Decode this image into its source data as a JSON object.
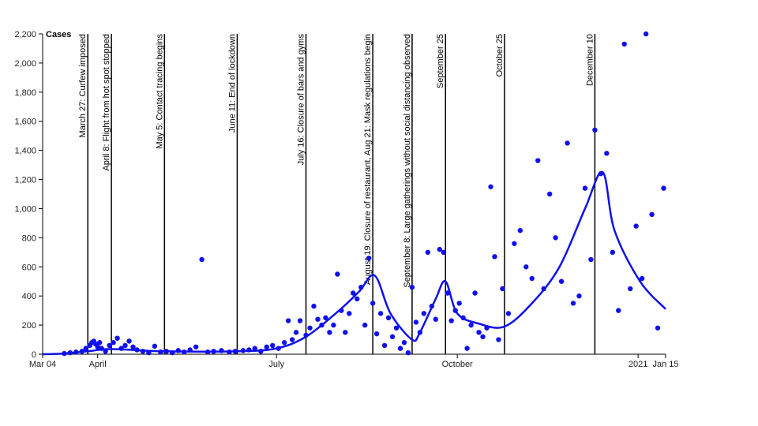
{
  "chart_data": {
    "type": "scatter",
    "title": "",
    "ylabel": "Cases",
    "xlabel": "",
    "x_domain": [
      "2020-03-04",
      "2021-01-15"
    ],
    "ylim": [
      0,
      2200
    ],
    "y_ticks": [
      0,
      200,
      400,
      600,
      800,
      1000,
      1200,
      1400,
      1600,
      1800,
      2000,
      2200
    ],
    "y_tick_labels": [
      "0",
      "200",
      "400",
      "600",
      "800",
      "1,000",
      "1,200",
      "1,400",
      "1,600",
      "1,800",
      "2,000",
      "2,200"
    ],
    "x_ticks": [
      {
        "date": "2020-03-04",
        "label": "Mar 04"
      },
      {
        "date": "2020-04-01",
        "label": "April"
      },
      {
        "date": "2020-07-01",
        "label": "July"
      },
      {
        "date": "2020-10-01",
        "label": "October"
      },
      {
        "date": "2021-01-01",
        "label": "2021"
      },
      {
        "date": "2021-01-15",
        "label": "Jan 15"
      }
    ],
    "grid": false,
    "colors": {
      "points": "#1010ee",
      "trend": "#1010ee",
      "events": "#000000",
      "axis": "#000000"
    },
    "events": [
      {
        "date": "2020-03-27",
        "label": "March 27: Curfew imposed"
      },
      {
        "date": "2020-04-08",
        "label": "April 8: Flight from hot spot stopped"
      },
      {
        "date": "2020-05-05",
        "label": "May 5: Contact tracing begins"
      },
      {
        "date": "2020-06-11",
        "label": "June 11: End of lockdown"
      },
      {
        "date": "2020-07-16",
        "label": "July 16: Closure of bars and gyms"
      },
      {
        "date": "2020-08-19",
        "label": "August 19: Closure of restaurant, Aug 21: Mask regulations begin"
      },
      {
        "date": "2020-09-08",
        "label": "September 8: Large gatherings without social distancing observed"
      },
      {
        "date": "2020-09-25",
        "label": "September 25"
      },
      {
        "date": "2020-10-25",
        "label": "October 25"
      },
      {
        "date": "2020-12-10",
        "label": "December 10"
      }
    ],
    "series": [
      {
        "type": "scatter",
        "points": [
          [
            "2020-03-15",
            5
          ],
          [
            "2020-03-18",
            10
          ],
          [
            "2020-03-21",
            15
          ],
          [
            "2020-03-24",
            20
          ],
          [
            "2020-03-26",
            40
          ],
          [
            "2020-03-28",
            60
          ],
          [
            "2020-03-29",
            80
          ],
          [
            "2020-03-30",
            90
          ],
          [
            "2020-03-31",
            70
          ],
          [
            "2020-04-01",
            50
          ],
          [
            "2020-04-02",
            80
          ],
          [
            "2020-04-03",
            40
          ],
          [
            "2020-04-05",
            20
          ],
          [
            "2020-04-07",
            60
          ],
          [
            "2020-04-09",
            80
          ],
          [
            "2020-04-11",
            110
          ],
          [
            "2020-04-13",
            40
          ],
          [
            "2020-04-15",
            60
          ],
          [
            "2020-04-17",
            90
          ],
          [
            "2020-04-19",
            50
          ],
          [
            "2020-04-21",
            30
          ],
          [
            "2020-04-24",
            20
          ],
          [
            "2020-04-27",
            10
          ],
          [
            "2020-04-30",
            55
          ],
          [
            "2020-05-03",
            15
          ],
          [
            "2020-05-06",
            20
          ],
          [
            "2020-05-09",
            10
          ],
          [
            "2020-05-12",
            25
          ],
          [
            "2020-05-15",
            15
          ],
          [
            "2020-05-18",
            30
          ],
          [
            "2020-05-21",
            50
          ],
          [
            "2020-05-24",
            650
          ],
          [
            "2020-05-27",
            15
          ],
          [
            "2020-05-30",
            20
          ],
          [
            "2020-06-03",
            25
          ],
          [
            "2020-06-07",
            15
          ],
          [
            "2020-06-10",
            20
          ],
          [
            "2020-06-14",
            25
          ],
          [
            "2020-06-17",
            30
          ],
          [
            "2020-06-20",
            40
          ],
          [
            "2020-06-23",
            20
          ],
          [
            "2020-06-26",
            50
          ],
          [
            "2020-06-29",
            60
          ],
          [
            "2020-07-02",
            40
          ],
          [
            "2020-07-05",
            80
          ],
          [
            "2020-07-07",
            230
          ],
          [
            "2020-07-09",
            100
          ],
          [
            "2020-07-11",
            150
          ],
          [
            "2020-07-13",
            230
          ],
          [
            "2020-07-16",
            130
          ],
          [
            "2020-07-18",
            180
          ],
          [
            "2020-07-20",
            330
          ],
          [
            "2020-07-22",
            240
          ],
          [
            "2020-07-24",
            200
          ],
          [
            "2020-07-26",
            250
          ],
          [
            "2020-07-28",
            150
          ],
          [
            "2020-07-30",
            200
          ],
          [
            "2020-08-01",
            550
          ],
          [
            "2020-08-03",
            300
          ],
          [
            "2020-08-05",
            150
          ],
          [
            "2020-08-07",
            280
          ],
          [
            "2020-08-09",
            420
          ],
          [
            "2020-08-11",
            380
          ],
          [
            "2020-08-13",
            460
          ],
          [
            "2020-08-15",
            200
          ],
          [
            "2020-08-17",
            660
          ],
          [
            "2020-08-19",
            350
          ],
          [
            "2020-08-21",
            140
          ],
          [
            "2020-08-23",
            280
          ],
          [
            "2020-08-25",
            60
          ],
          [
            "2020-08-27",
            250
          ],
          [
            "2020-08-29",
            120
          ],
          [
            "2020-08-31",
            180
          ],
          [
            "2020-09-02",
            40
          ],
          [
            "2020-09-04",
            80
          ],
          [
            "2020-09-06",
            10
          ],
          [
            "2020-09-08",
            460
          ],
          [
            "2020-09-10",
            220
          ],
          [
            "2020-09-12",
            150
          ],
          [
            "2020-09-14",
            280
          ],
          [
            "2020-09-16",
            700
          ],
          [
            "2020-09-18",
            330
          ],
          [
            "2020-09-20",
            240
          ],
          [
            "2020-09-22",
            720
          ],
          [
            "2020-09-24",
            700
          ],
          [
            "2020-09-26",
            420
          ],
          [
            "2020-09-28",
            230
          ],
          [
            "2020-09-30",
            300
          ],
          [
            "2020-10-02",
            350
          ],
          [
            "2020-10-04",
            250
          ],
          [
            "2020-10-06",
            40
          ],
          [
            "2020-10-08",
            200
          ],
          [
            "2020-10-10",
            420
          ],
          [
            "2020-10-12",
            150
          ],
          [
            "2020-10-14",
            120
          ],
          [
            "2020-10-16",
            180
          ],
          [
            "2020-10-18",
            1150
          ],
          [
            "2020-10-20",
            670
          ],
          [
            "2020-10-22",
            100
          ],
          [
            "2020-10-24",
            450
          ],
          [
            "2020-10-27",
            280
          ],
          [
            "2020-10-30",
            760
          ],
          [
            "2020-11-02",
            850
          ],
          [
            "2020-11-05",
            600
          ],
          [
            "2020-11-08",
            520
          ],
          [
            "2020-11-11",
            1330
          ],
          [
            "2020-11-14",
            450
          ],
          [
            "2020-11-17",
            1100
          ],
          [
            "2020-11-20",
            800
          ],
          [
            "2020-11-23",
            500
          ],
          [
            "2020-11-26",
            1450
          ],
          [
            "2020-11-29",
            350
          ],
          [
            "2020-12-02",
            400
          ],
          [
            "2020-12-05",
            1140
          ],
          [
            "2020-12-08",
            650
          ],
          [
            "2020-12-10",
            1540
          ],
          [
            "2020-12-13",
            1240
          ],
          [
            "2020-12-16",
            1380
          ],
          [
            "2020-12-19",
            700
          ],
          [
            "2020-12-22",
            300
          ],
          [
            "2020-12-25",
            2130
          ],
          [
            "2020-12-28",
            450
          ],
          [
            "2020-12-31",
            880
          ],
          [
            "2021-01-03",
            520
          ],
          [
            "2021-01-05",
            2200
          ],
          [
            "2021-01-08",
            960
          ],
          [
            "2021-01-11",
            180
          ],
          [
            "2021-01-14",
            1140
          ]
        ]
      },
      {
        "type": "line",
        "points": [
          [
            "2020-03-04",
            0
          ],
          [
            "2020-03-15",
            5
          ],
          [
            "2020-03-27",
            20
          ],
          [
            "2020-04-08",
            35
          ],
          [
            "2020-05-05",
            20
          ],
          [
            "2020-06-11",
            20
          ],
          [
            "2020-07-01",
            40
          ],
          [
            "2020-07-16",
            120
          ],
          [
            "2020-08-01",
            290
          ],
          [
            "2020-08-12",
            430
          ],
          [
            "2020-08-20",
            540
          ],
          [
            "2020-08-28",
            280
          ],
          [
            "2020-09-08",
            100
          ],
          [
            "2020-09-12",
            150
          ],
          [
            "2020-09-20",
            380
          ],
          [
            "2020-09-25",
            500
          ],
          [
            "2020-10-01",
            280
          ],
          [
            "2020-10-12",
            210
          ],
          [
            "2020-10-25",
            190
          ],
          [
            "2020-11-08",
            350
          ],
          [
            "2020-11-22",
            600
          ],
          [
            "2020-12-05",
            1000
          ],
          [
            "2020-12-14",
            1250
          ],
          [
            "2020-12-20",
            850
          ],
          [
            "2021-01-02",
            500
          ],
          [
            "2021-01-15",
            310
          ]
        ]
      }
    ]
  }
}
